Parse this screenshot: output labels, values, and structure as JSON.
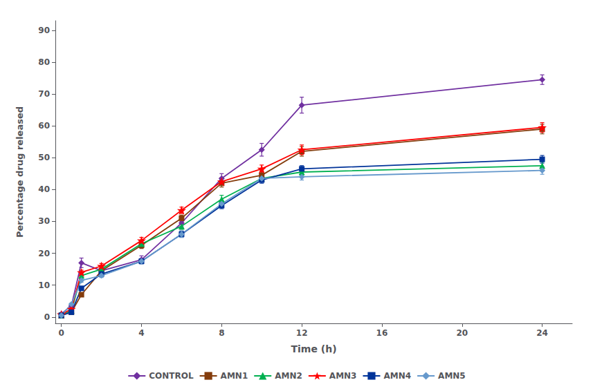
{
  "chart_data": {
    "type": "line",
    "xlabel": "Time (h)",
    "ylabel": "Percentage drug released",
    "xlim": [
      -0.3,
      25.5
    ],
    "ylim": [
      -2,
      93
    ],
    "xticks": [
      0,
      4,
      8,
      12,
      16,
      20,
      24
    ],
    "yticks": [
      0,
      10,
      20,
      30,
      40,
      50,
      60,
      70,
      80,
      90
    ],
    "grid": false,
    "legend": "bottom",
    "x": [
      0,
      0.5,
      1,
      2,
      4,
      6,
      8,
      10,
      12,
      24
    ],
    "series": [
      {
        "name": "CONTROL",
        "color": "#7030A0",
        "marker": "diamond",
        "values": [
          1.0,
          3.5,
          17.0,
          14.5,
          18.0,
          29.5,
          43.5,
          52.5,
          66.5,
          74.5
        ],
        "yerr": [
          0.2,
          0.4,
          1.5,
          1.0,
          1.2,
          1.2,
          1.5,
          2.0,
          2.5,
          1.5
        ]
      },
      {
        "name": "AMN1",
        "color": "#843C0C",
        "marker": "square",
        "values": [
          0.5,
          1.5,
          7.0,
          14.5,
          22.5,
          31.0,
          42.0,
          44.5,
          52.0,
          59.0
        ],
        "yerr": [
          0.2,
          0.2,
          0.5,
          0.8,
          1.0,
          1.0,
          1.2,
          1.2,
          1.5,
          1.5
        ]
      },
      {
        "name": "AMN2",
        "color": "#00B050",
        "marker": "triangle",
        "values": [
          0.5,
          2.0,
          13.0,
          15.0,
          23.0,
          28.5,
          37.0,
          43.5,
          45.5,
          47.5
        ],
        "yerr": [
          0.2,
          0.3,
          0.7,
          0.8,
          1.0,
          1.0,
          1.2,
          1.0,
          1.0,
          1.2
        ]
      },
      {
        "name": "AMN3",
        "color": "#FF0000",
        "marker": "star",
        "values": [
          0.8,
          2.5,
          14.0,
          16.0,
          24.0,
          33.5,
          42.5,
          46.5,
          52.5,
          59.5
        ],
        "yerr": [
          0.2,
          0.3,
          0.7,
          0.8,
          1.0,
          1.0,
          1.2,
          1.2,
          1.5,
          1.5
        ]
      },
      {
        "name": "AMN4",
        "color": "#003399",
        "marker": "square",
        "values": [
          0.5,
          1.5,
          9.0,
          13.5,
          17.5,
          26.0,
          35.0,
          43.0,
          46.5,
          49.5
        ],
        "yerr": [
          0.2,
          0.2,
          0.5,
          0.7,
          0.8,
          1.0,
          1.0,
          1.0,
          1.0,
          1.2
        ]
      },
      {
        "name": "AMN5",
        "color": "#6699CC",
        "marker": "diamond",
        "values": [
          0.5,
          4.0,
          11.5,
          13.0,
          17.5,
          26.0,
          35.5,
          43.5,
          44.0,
          46.0
        ],
        "yerr": [
          0.2,
          0.3,
          0.6,
          0.6,
          0.8,
          1.0,
          1.0,
          1.0,
          1.0,
          1.2
        ]
      }
    ]
  }
}
